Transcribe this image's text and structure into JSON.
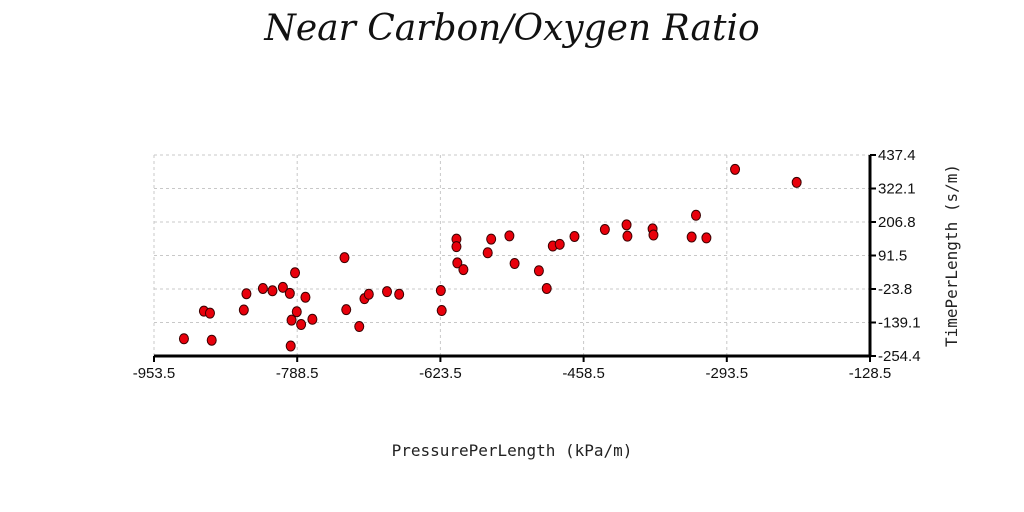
{
  "chart_data": {
    "type": "scatter",
    "title": "Near Carbon/Oxygen Ratio",
    "xlabel": "PressurePerLength (kPa/m)",
    "ylabel": "TimePerLength (s/m)",
    "xlim": [
      -953.5,
      -128.5
    ],
    "ylim": [
      -254.4,
      437.4
    ],
    "x_ticks": [
      "-953.5",
      "-788.5",
      "-623.5",
      "-458.5",
      "-293.5",
      "-128.5"
    ],
    "y_ticks": [
      "437.4",
      "322.1",
      "206.8",
      "91.5",
      "-23.8",
      "-139.1",
      "-254.4"
    ],
    "grid": true,
    "y_axis_side": "right",
    "marker_color": "#e8000b",
    "marker_edge": "#3a0000",
    "points": [
      {
        "x": -919,
        "y": -195
      },
      {
        "x": -896,
        "y": -100
      },
      {
        "x": -889,
        "y": -107
      },
      {
        "x": -887,
        "y": -200
      },
      {
        "x": -850,
        "y": -96
      },
      {
        "x": -847,
        "y": -40
      },
      {
        "x": -828,
        "y": -22
      },
      {
        "x": -817,
        "y": -30
      },
      {
        "x": -805,
        "y": -18
      },
      {
        "x": -797,
        "y": -39
      },
      {
        "x": -796,
        "y": -220
      },
      {
        "x": -795,
        "y": -131
      },
      {
        "x": -791,
        "y": 32
      },
      {
        "x": -789,
        "y": -102
      },
      {
        "x": -784,
        "y": -146
      },
      {
        "x": -779,
        "y": -52
      },
      {
        "x": -771,
        "y": -128
      },
      {
        "x": -734,
        "y": 84
      },
      {
        "x": -732,
        "y": -95
      },
      {
        "x": -717,
        "y": -153
      },
      {
        "x": -711,
        "y": -57
      },
      {
        "x": -706,
        "y": -42
      },
      {
        "x": -685,
        "y": -33
      },
      {
        "x": -671,
        "y": -42
      },
      {
        "x": -623,
        "y": -29
      },
      {
        "x": -622,
        "y": -98
      },
      {
        "x": -605,
        "y": 148
      },
      {
        "x": -605,
        "y": 122
      },
      {
        "x": -604,
        "y": 66
      },
      {
        "x": -597,
        "y": 43
      },
      {
        "x": -569,
        "y": 101
      },
      {
        "x": -565,
        "y": 148
      },
      {
        "x": -544,
        "y": 159
      },
      {
        "x": -538,
        "y": 64
      },
      {
        "x": -510,
        "y": 39
      },
      {
        "x": -501,
        "y": -22
      },
      {
        "x": -494,
        "y": 124
      },
      {
        "x": -486,
        "y": 130
      },
      {
        "x": -469,
        "y": 157
      },
      {
        "x": -434,
        "y": 181
      },
      {
        "x": -409,
        "y": 197
      },
      {
        "x": -408,
        "y": 158
      },
      {
        "x": -379,
        "y": 183
      },
      {
        "x": -378,
        "y": 162
      },
      {
        "x": -334,
        "y": 155
      },
      {
        "x": -329,
        "y": 230
      },
      {
        "x": -317,
        "y": 152
      },
      {
        "x": -284,
        "y": 388
      },
      {
        "x": -213,
        "y": 343
      }
    ]
  }
}
